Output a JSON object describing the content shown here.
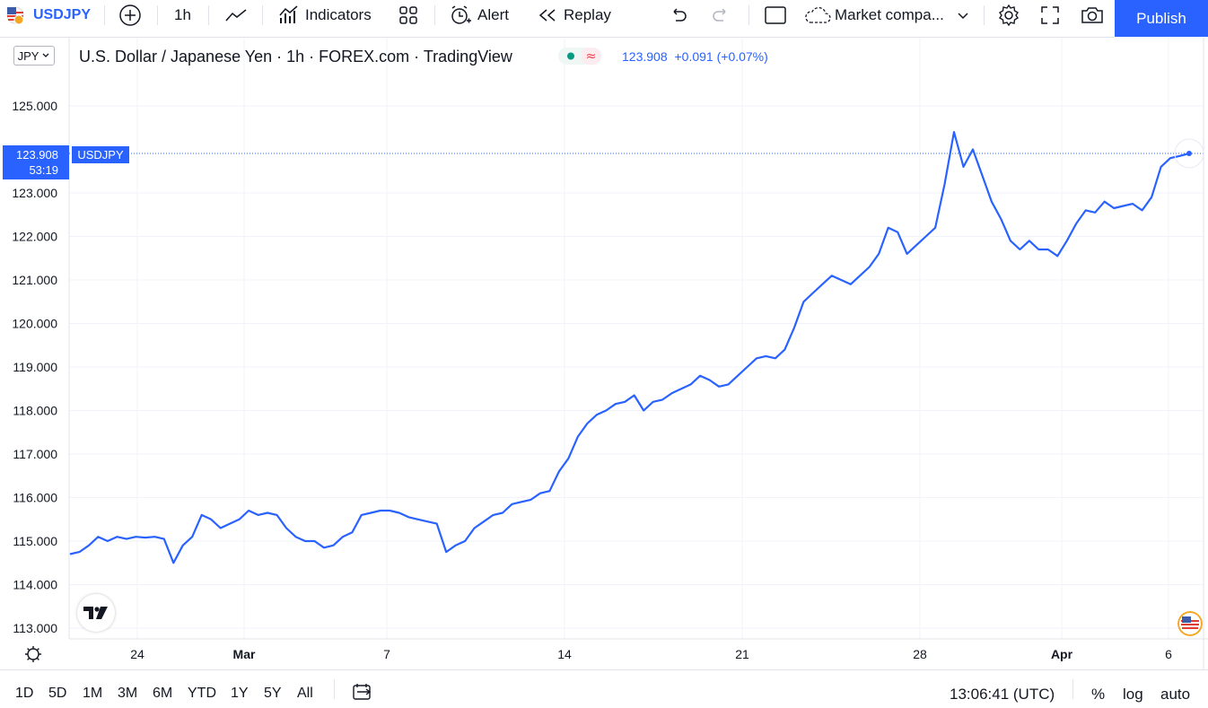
{
  "toolbar": {
    "symbol": "USDJPY",
    "interval": "1h",
    "indicators_label": "Indicators",
    "alert_label": "Alert",
    "replay_label": "Replay",
    "layout_label": "Market compa...",
    "publish_label": "Publish"
  },
  "legend": {
    "title": "U.S. Dollar / Japanese Yen · 1h · FOREX.com · TradingView",
    "price": "123.908",
    "change": "+0.091 (+0.07%)"
  },
  "currency_selector": "JPY",
  "price_tag": {
    "price": "123.908",
    "countdown": "53:19",
    "symbol": "USDJPY"
  },
  "colors": {
    "line": "#2962ff",
    "accent": "#2962ff",
    "grid": "#f0f3fa"
  },
  "chart_data": {
    "type": "line",
    "ylim": [
      113.0,
      125.5
    ],
    "y_ticks": [
      "125.000",
      "123.000",
      "122.000",
      "121.000",
      "120.000",
      "119.000",
      "118.000",
      "117.000",
      "116.000",
      "115.000",
      "114.000",
      "113.000"
    ],
    "x_ticks": [
      "24",
      "Mar",
      "7",
      "14",
      "21",
      "28",
      "Apr",
      "6"
    ],
    "series": [
      {
        "values": [
          114.7,
          114.75,
          114.9,
          115.1,
          115.0,
          115.1,
          115.05,
          115.1,
          115.08,
          115.1,
          115.05,
          114.5,
          114.9,
          115.1,
          115.6,
          115.5,
          115.3,
          115.4,
          115.5,
          115.7,
          115.6,
          115.65,
          115.6,
          115.3,
          115.1,
          115.0,
          115.0,
          114.85,
          114.9,
          115.1,
          115.2,
          115.6,
          115.65,
          115.7,
          115.7,
          115.65,
          115.55,
          115.5,
          115.45,
          115.4,
          114.75,
          114.9,
          115.0,
          115.3,
          115.45,
          115.6,
          115.65,
          115.85,
          115.9,
          115.95,
          116.1,
          116.15,
          116.6,
          116.9,
          117.4,
          117.7,
          117.9,
          118.0,
          118.15,
          118.2,
          118.35,
          118.0,
          118.2,
          118.25,
          118.4,
          118.5,
          118.6,
          118.8,
          118.7,
          118.55,
          118.6,
          118.8,
          119.0,
          119.2,
          119.25,
          119.2,
          119.4,
          119.9,
          120.5,
          120.7,
          120.9,
          121.1,
          121.0,
          120.9,
          121.1,
          121.3,
          121.6,
          122.2,
          122.1,
          121.6,
          121.8,
          122.0,
          122.2,
          123.2,
          124.4,
          123.6,
          124.0,
          123.4,
          122.8,
          122.4,
          121.9,
          121.7,
          121.9,
          121.7,
          121.7,
          121.55,
          121.9,
          122.3,
          122.6,
          122.55,
          122.8,
          122.65,
          122.7,
          122.75,
          122.6,
          122.9,
          123.6,
          123.8,
          123.85,
          123.908
        ]
      }
    ]
  }
}
